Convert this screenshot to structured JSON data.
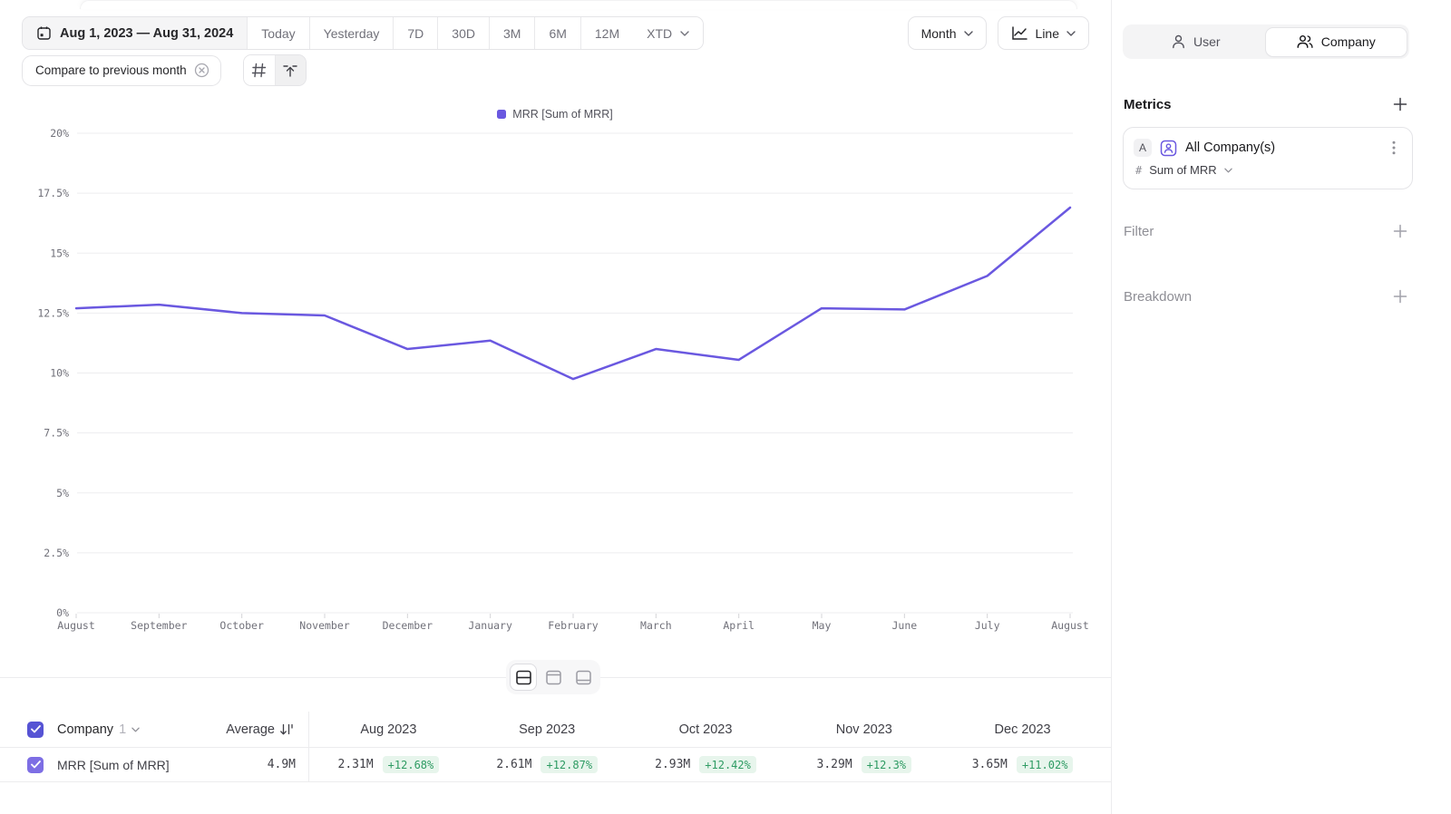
{
  "toolbar": {
    "date_range": "Aug 1, 2023 — Aug 31, 2024",
    "presets": [
      "Today",
      "Yesterday",
      "7D",
      "30D",
      "3M",
      "6M",
      "12M"
    ],
    "xtd_label": "XTD",
    "compare_chip": "Compare to previous month",
    "granularity_label": "Month",
    "chart_type_label": "Line"
  },
  "sidebar": {
    "toggle": {
      "user_label": "User",
      "company_label": "Company",
      "selected": "Company"
    },
    "metrics_heading": "Metrics",
    "metric_card": {
      "badge": "A",
      "name": "All Company(s)",
      "hash_icon": "#",
      "measure": "Sum of MRR"
    },
    "filter_label": "Filter",
    "breakdown_label": "Breakdown"
  },
  "chart_data": {
    "type": "line",
    "title": "",
    "legend": [
      {
        "label": "MRR [Sum of MRR]",
        "color": "#6A58E0"
      }
    ],
    "x_labels": [
      "August",
      "September",
      "October",
      "November",
      "December",
      "January",
      "February",
      "March",
      "April",
      "May",
      "June",
      "July",
      "August"
    ],
    "series": [
      {
        "name": "MRR [Sum of MRR]",
        "color": "#6A58E0",
        "values": [
          12.7,
          12.85,
          12.5,
          12.4,
          11.0,
          11.35,
          9.75,
          11.0,
          10.55,
          12.7,
          12.65,
          14.05,
          16.9
        ]
      }
    ],
    "y_ticks": [
      "0%",
      "2.5%",
      "5%",
      "7.5%",
      "10%",
      "12.5%",
      "15%",
      "17.5%",
      "20%"
    ],
    "ylim": [
      0,
      20
    ],
    "unit": "%",
    "grid": "horizontal",
    "legend_position": "top-center"
  },
  "table": {
    "header": {
      "entity": "Company",
      "count": "1",
      "average_label": "Average",
      "months": [
        "Aug 2023",
        "Sep 2023",
        "Oct 2023",
        "Nov 2023",
        "Dec 2023"
      ]
    },
    "rows": [
      {
        "label": "MRR [Sum of MRR]",
        "average": "4.9M",
        "cells": [
          {
            "value": "2.31M",
            "delta": "+12.68%"
          },
          {
            "value": "2.61M",
            "delta": "+12.87%"
          },
          {
            "value": "2.93M",
            "delta": "+12.42%"
          },
          {
            "value": "3.29M",
            "delta": "+12.3%"
          },
          {
            "value": "3.65M",
            "delta": "+11.02%"
          }
        ]
      }
    ]
  },
  "colors": {
    "accent_purple": "#6A58E0",
    "checkbox_header": "#5653D4",
    "checkbox_row": "#7D6EE4",
    "delta_green_text": "#2E9B63",
    "delta_green_bg": "#E7F5EC",
    "grid_line": "#ededef"
  }
}
